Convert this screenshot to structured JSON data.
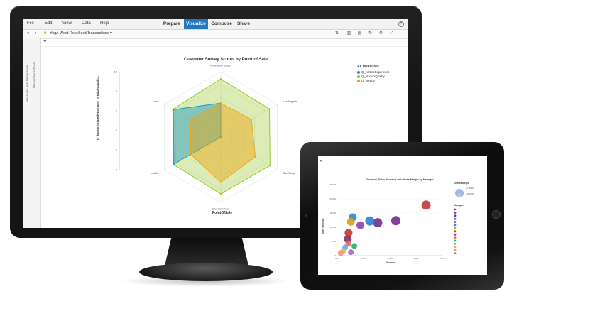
{
  "app": {
    "menu": [
      "File",
      "Edit",
      "View",
      "Data",
      "Help"
    ],
    "tabs": [
      {
        "label": "Prepare",
        "active": false
      },
      {
        "label": "Visualize",
        "active": true
      },
      {
        "label": "Compose",
        "active": false
      },
      {
        "label": "Share",
        "active": false
      }
    ],
    "help_icon": "question-icon",
    "accent": "#1f78c1",
    "dataset": "Yoga West Retail.dot/Transactions",
    "side_labels": [
      "Measures and Dimensions",
      "Visualization Tools"
    ]
  },
  "chart_data": [
    {
      "type": "radar",
      "title": "Customer Survey Scores by Point of Sale",
      "xlabel": "PointOfSale",
      "ylabel": "Q_inStoreExperience & Q_productQualit...",
      "ylim": [
        0,
        10
      ],
      "yticks": [
        "0",
        "2",
        "4",
        "6",
        "8",
        "10"
      ],
      "categories": [
        "Huntington Beach",
        "Los Angeles",
        "San Diego",
        "San Francisco",
        "mobile",
        "web"
      ],
      "legend_title": "All Measures",
      "legend_position": "top-right",
      "series": [
        {
          "name": "Q_inStoreExperience",
          "color": "#1b96c4",
          "values": [
            5.2,
            0,
            0,
            0,
            8.3,
            8.4
          ]
        },
        {
          "name": "Q_productQuality",
          "color": "#8fc31f",
          "values": [
            8.9,
            8.6,
            8.7,
            8.7,
            8.4,
            8.5
          ]
        },
        {
          "name": "Q_service",
          "color": "#f0a30a",
          "values": [
            5.2,
            5.4,
            6.1,
            6.9,
            5.3,
            5.4
          ]
        }
      ]
    },
    {
      "type": "scatter",
      "title": "Discount, Sales Revenue and Gross Margin by Manager",
      "xlabel": "Discount",
      "ylabel": "Sales Revenue",
      "xticks": [
        "0.00",
        "1,000",
        "2,000",
        "3,000",
        "4,000"
      ],
      "yticks": [
        "0",
        "5,000",
        "10,000",
        "15,000",
        "20,000",
        "25,000"
      ],
      "xlim": [
        0,
        4000
      ],
      "ylim": [
        0,
        25000
      ],
      "legend_title_size": "Gross Margin",
      "size_legend": [
        "8,718,504",
        "4,359,252"
      ],
      "legend_title_color": "Manager",
      "points": [
        {
          "x": 3380,
          "y": 17800,
          "color": "#c0393b"
        },
        {
          "x": 2230,
          "y": 12300,
          "color": "#7a2a8c"
        },
        {
          "x": 1540,
          "y": 11600,
          "color": "#6b2d8e"
        },
        {
          "x": 1240,
          "y": 12200,
          "color": "#2a7fd4"
        },
        {
          "x": 880,
          "y": 10700,
          "color": "#8e44ad"
        },
        {
          "x": 590,
          "y": 13500,
          "color": "#2e86de"
        },
        {
          "x": 520,
          "y": 11900,
          "color": "#d9a21b"
        },
        {
          "x": 430,
          "y": 8000,
          "color": "#c0392b"
        },
        {
          "x": 400,
          "y": 5800,
          "color": "#8e2c55"
        },
        {
          "x": 420,
          "y": 4200,
          "color": "#e26a6a"
        },
        {
          "x": 650,
          "y": 3400,
          "color": "#27ae60"
        },
        {
          "x": 300,
          "y": 2900,
          "color": "#5dade2"
        },
        {
          "x": 230,
          "y": 1700,
          "color": "#f5b041"
        },
        {
          "x": 130,
          "y": 900,
          "color": "#f1948a"
        },
        {
          "x": 520,
          "y": 1200,
          "color": "#a569bd"
        }
      ]
    }
  ]
}
